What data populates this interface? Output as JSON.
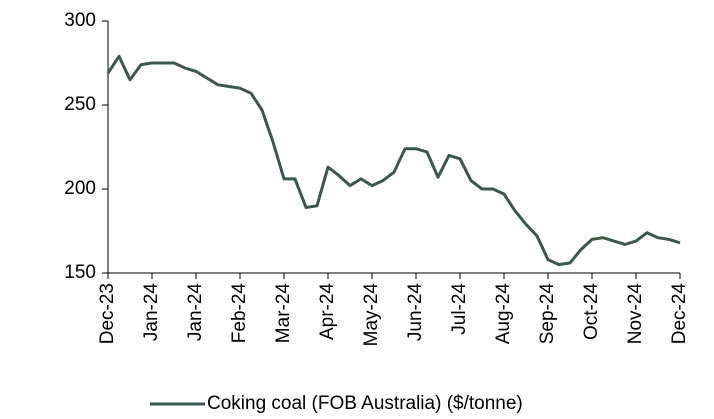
{
  "chart_data": {
    "type": "line",
    "categories": [
      "Dec-23",
      null,
      null,
      null,
      "Jan-24",
      null,
      null,
      null,
      "Jan-24",
      null,
      null,
      null,
      "Feb-24",
      null,
      null,
      null,
      "Mar-24",
      null,
      null,
      null,
      "Apr-24",
      null,
      null,
      null,
      "May-24",
      null,
      null,
      null,
      "Jun-24",
      null,
      null,
      null,
      "Jul-24",
      null,
      null,
      null,
      "Aug-24",
      null,
      null,
      null,
      "Sep-24",
      null,
      null,
      null,
      "Oct-24",
      null,
      null,
      null,
      "Nov-24",
      null,
      null,
      null,
      "Dec-24"
    ],
    "series": [
      {
        "name": "Coking coal (FOB Australia) ($/tonne)",
        "color": "#3b5849",
        "values": [
          269,
          279,
          265,
          274,
          275,
          275,
          275,
          272,
          270,
          266,
          262,
          261,
          260,
          257,
          247,
          228,
          206,
          206,
          189,
          190,
          213,
          208,
          202,
          206,
          202,
          205,
          210,
          224,
          224,
          222,
          207,
          220,
          218,
          205,
          200,
          200,
          197,
          187,
          179,
          172,
          158,
          155,
          156,
          164,
          170,
          171,
          169,
          167,
          169,
          174,
          171,
          170,
          168
        ]
      }
    ],
    "ylim": [
      150,
      300
    ],
    "yticks": [
      150,
      200,
      250,
      300
    ],
    "legend": "bottom"
  }
}
